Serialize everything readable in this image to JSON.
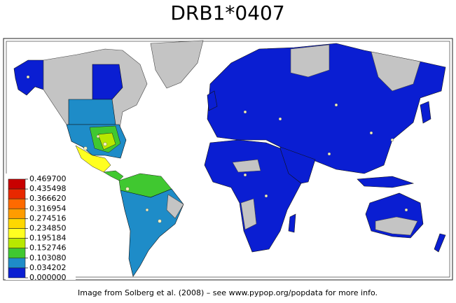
{
  "title": "DRB1*0407",
  "legend": {
    "labels": [
      "0.469700",
      "0.435498",
      "0.366620",
      "0.316954",
      "0.274516",
      "0.234850",
      "0.195184",
      "0.152746",
      "0.103080",
      "0.034202",
      "0.000000"
    ],
    "colors": [
      "#c80000",
      "#e82800",
      "#ff6a00",
      "#ff9c00",
      "#ffd800",
      "#ffff20",
      "#b8e800",
      "#40c830",
      "#1e8cc8",
      "#0a1ed2"
    ]
  },
  "caption": "Image from Solberg et al. (2008) – see www.pypop.org/popdata for more info."
}
